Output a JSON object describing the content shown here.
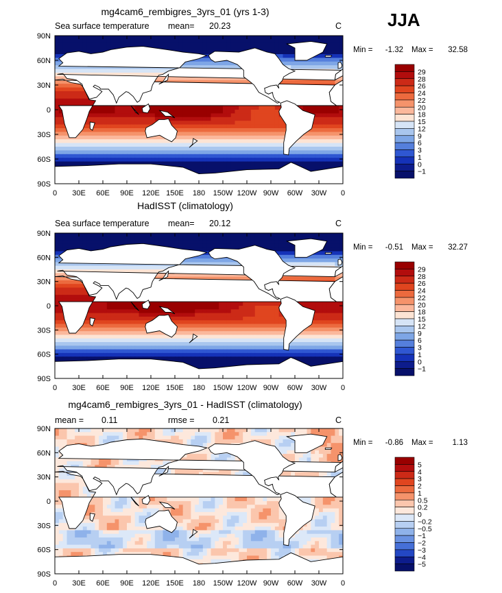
{
  "season": "JJA",
  "chart_data": [
    {
      "type": "heatmap",
      "title": "mg4cam6_rembigres_3yrs_01 (yrs 1-3)",
      "left_label": "Sea surface temperature",
      "mean_label": "mean=",
      "mean_value": "20.23",
      "unit": "C",
      "min_label": "Min =",
      "min_value": "-1.32",
      "max_label": "Max =",
      "max_value": "32.58",
      "xticks": [
        "0",
        "30E",
        "60E",
        "90E",
        "120E",
        "150E",
        "180",
        "150W",
        "120W",
        "90W",
        "60W",
        "30W",
        "0"
      ],
      "yticks": [
        "90N",
        "60N",
        "30N",
        "0",
        "30S",
        "60S",
        "90S"
      ],
      "levels": [
        "29",
        "28",
        "26",
        "24",
        "22",
        "20",
        "18",
        "15",
        "12",
        "9",
        "6",
        "3",
        "1",
        "0",
        "−1"
      ],
      "field": "sst"
    },
    {
      "type": "heatmap",
      "title": "HadISST (climatology)",
      "left_label": "Sea surface temperature",
      "mean_label": "mean=",
      "mean_value": "20.12",
      "unit": "C",
      "min_label": "Min =",
      "min_value": "-0.51",
      "max_label": "Max =",
      "max_value": "32.27",
      "xticks": [
        "0",
        "30E",
        "60E",
        "90E",
        "120E",
        "150E",
        "180",
        "150W",
        "120W",
        "90W",
        "60W",
        "30W",
        "0"
      ],
      "yticks": [
        "90N",
        "60N",
        "30N",
        "0",
        "30S",
        "60S",
        "90S"
      ],
      "levels": [
        "29",
        "28",
        "26",
        "24",
        "22",
        "20",
        "18",
        "15",
        "12",
        "9",
        "6",
        "3",
        "1",
        "0",
        "−1"
      ],
      "field": "sst"
    },
    {
      "type": "heatmap",
      "title": "mg4cam6_rembigres_3yrs_01 - HadISST (climatology)",
      "left_label": "mean =",
      "mean_label": "",
      "mean_value": "0.11",
      "rmse_label": "rmse =",
      "rmse_value": "0.21",
      "unit": "C",
      "min_label": "Min =",
      "min_value": "-0.86",
      "max_label": "Max =",
      "max_value": "1.13",
      "xticks": [
        "0",
        "30E",
        "60E",
        "90E",
        "120E",
        "150E",
        "180",
        "150W",
        "120W",
        "90W",
        "60W",
        "30W",
        "0"
      ],
      "yticks": [
        "90N",
        "60N",
        "30N",
        "0",
        "30S",
        "60S",
        "90S"
      ],
      "levels": [
        "5",
        "4",
        "3",
        "2",
        "1",
        "0.5",
        "0.2",
        "0",
        "−0.2",
        "−0.5",
        "−1",
        "−2",
        "−3",
        "−4",
        "−5"
      ],
      "field": "diff"
    }
  ],
  "colors": {
    "sst": [
      "#990000",
      "#b20d0d",
      "#cc2a17",
      "#e0451f",
      "#ec6a3e",
      "#f5936b",
      "#fbb89c",
      "#fde4d4",
      "#d6e4f6",
      "#a9c6ee",
      "#7ea6e6",
      "#557fdc",
      "#2f57d2",
      "#1532b8",
      "#0d1c8c",
      "#07106a"
    ],
    "diff": [
      "#990000",
      "#b20d0d",
      "#cc2a17",
      "#e0451f",
      "#ec6a3e",
      "#f5936b",
      "#fbc6ad",
      "#fde8dc",
      "#dce8f8",
      "#b7cff2",
      "#8fb2ea",
      "#6a92e2",
      "#4670d8",
      "#2347c4",
      "#0d1c8c",
      "#07106a"
    ],
    "land": "#ffffff"
  }
}
